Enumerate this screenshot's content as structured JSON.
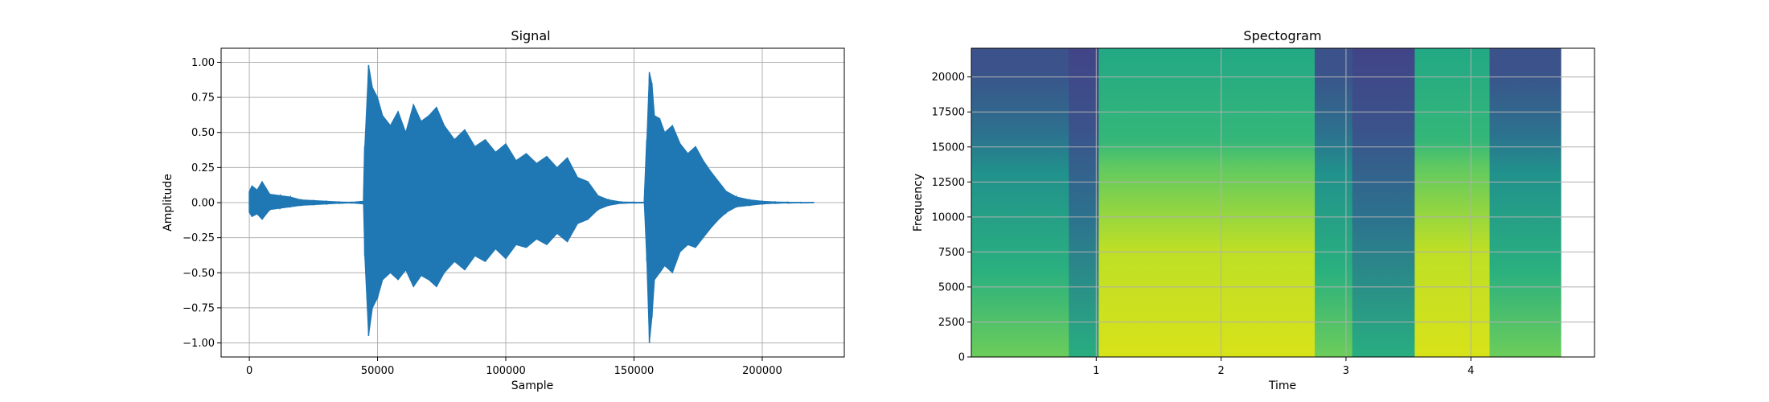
{
  "chart_data": [
    {
      "type": "line",
      "title": "Signal",
      "xlabel": "Sample",
      "ylabel": "Amplitude",
      "xlim": [
        -11000,
        232000
      ],
      "ylim": [
        -1.1,
        1.1
      ],
      "xticks": [
        0,
        50000,
        100000,
        150000,
        200000
      ],
      "xtick_labels": [
        "0",
        "50000",
        "100000",
        "150000",
        "200000"
      ],
      "yticks": [
        -1.0,
        -0.75,
        -0.5,
        -0.25,
        0.0,
        0.25,
        0.5,
        0.75,
        1.0
      ],
      "ytick_labels": [
        "−1.00",
        "−0.75",
        "−0.50",
        "−0.25",
        "0.00",
        "0.25",
        "0.50",
        "0.75",
        "1.00"
      ],
      "grid": true,
      "color": "#1f77b4",
      "series": [
        {
          "x": [
            0,
            1000,
            3000,
            5000,
            8000,
            12000,
            16000,
            20000,
            25000,
            30000,
            35000,
            40000,
            44500,
            45000,
            46500,
            48000,
            50000,
            52000,
            55000,
            58000,
            61000,
            64000,
            67000,
            70000,
            73000,
            76000,
            80000,
            84000,
            88000,
            92000,
            96000,
            100000,
            104000,
            108000,
            112000,
            116000,
            120000,
            124000,
            128000,
            132000,
            136000,
            140000,
            145000,
            150000,
            154000,
            155000,
            156000,
            157000,
            158000,
            160000,
            162000,
            165000,
            168000,
            171000,
            174000,
            177000,
            180000,
            183000,
            186000,
            190000,
            195000,
            200000,
            205000,
            210000,
            215000,
            220000
          ],
          "upper": [
            0.08,
            0.12,
            0.09,
            0.15,
            0.06,
            0.05,
            0.04,
            0.02,
            0.015,
            0.01,
            0.005,
            0.003,
            0.01,
            0.4,
            0.98,
            0.82,
            0.75,
            0.62,
            0.55,
            0.65,
            0.5,
            0.7,
            0.58,
            0.62,
            0.68,
            0.55,
            0.45,
            0.52,
            0.4,
            0.45,
            0.36,
            0.42,
            0.3,
            0.35,
            0.28,
            0.33,
            0.25,
            0.32,
            0.18,
            0.15,
            0.05,
            0.02,
            0.005,
            0.003,
            0.003,
            0.45,
            0.93,
            0.85,
            0.62,
            0.6,
            0.5,
            0.55,
            0.42,
            0.35,
            0.4,
            0.3,
            0.22,
            0.15,
            0.08,
            0.04,
            0.02,
            0.01,
            0.005,
            0.003,
            0.002,
            0.001
          ],
          "lower": [
            -0.07,
            -0.1,
            -0.08,
            -0.12,
            -0.05,
            -0.04,
            -0.03,
            -0.02,
            -0.015,
            -0.01,
            -0.005,
            -0.003,
            -0.01,
            -0.38,
            -0.95,
            -0.75,
            -0.68,
            -0.55,
            -0.5,
            -0.55,
            -0.48,
            -0.6,
            -0.52,
            -0.55,
            -0.6,
            -0.5,
            -0.42,
            -0.48,
            -0.38,
            -0.42,
            -0.33,
            -0.4,
            -0.3,
            -0.32,
            -0.26,
            -0.3,
            -0.22,
            -0.28,
            -0.15,
            -0.12,
            -0.05,
            -0.02,
            -0.005,
            -0.003,
            -0.003,
            -0.42,
            -1.0,
            -0.82,
            -0.55,
            -0.5,
            -0.45,
            -0.5,
            -0.35,
            -0.3,
            -0.32,
            -0.25,
            -0.18,
            -0.12,
            -0.07,
            -0.03,
            -0.02,
            -0.01,
            -0.005,
            -0.003,
            -0.002,
            -0.001
          ]
        }
      ]
    },
    {
      "type": "heatmap",
      "title": "Spectogram",
      "xlabel": "Time",
      "ylabel": "Frequency",
      "xlim": [
        0,
        4.99
      ],
      "ylim": [
        0,
        22050
      ],
      "data_xmax": 4.72,
      "xticks": [
        1,
        2,
        3,
        4
      ],
      "xtick_labels": [
        "1",
        "2",
        "3",
        "4"
      ],
      "yticks": [
        0,
        2500,
        5000,
        7500,
        10000,
        12500,
        15000,
        17500,
        20000
      ],
      "ytick_labels": [
        "0",
        "2500",
        "5000",
        "7500",
        "10000",
        "12500",
        "15000",
        "17500",
        "20000"
      ],
      "grid": true,
      "colormap": "viridis",
      "segments": [
        {
          "t0": 0.0,
          "t1": 0.78,
          "level": "medium"
        },
        {
          "t0": 0.78,
          "t1": 1.02,
          "level": "low"
        },
        {
          "t0": 1.02,
          "t1": 2.75,
          "level": "high"
        },
        {
          "t0": 2.75,
          "t1": 3.05,
          "level": "medium"
        },
        {
          "t0": 3.05,
          "t1": 3.55,
          "level": "low"
        },
        {
          "t0": 3.55,
          "t1": 4.15,
          "level": "high"
        },
        {
          "t0": 4.15,
          "t1": 4.72,
          "level": "medium"
        }
      ]
    }
  ]
}
